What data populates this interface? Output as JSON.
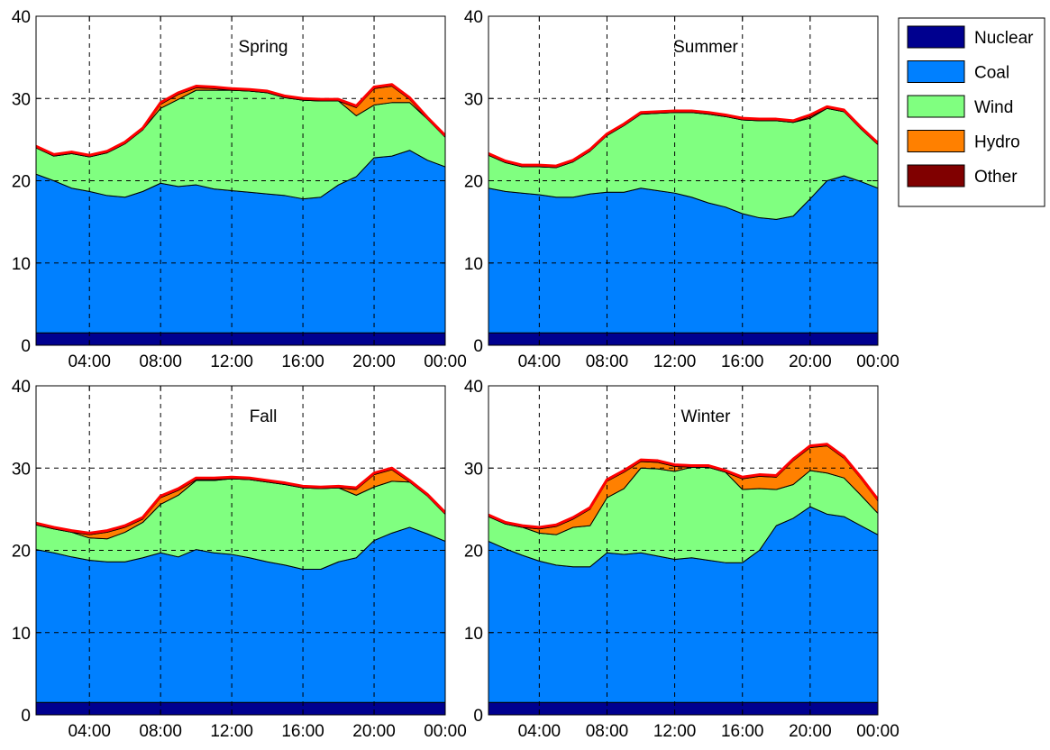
{
  "chart_data": {
    "type": "area",
    "stacked": true,
    "hours": [
      1,
      2,
      3,
      4,
      5,
      6,
      7,
      8,
      9,
      10,
      11,
      12,
      13,
      14,
      15,
      16,
      17,
      18,
      19,
      20,
      21,
      22,
      23,
      24
    ],
    "xticks": [
      4,
      8,
      12,
      16,
      20,
      24
    ],
    "xtick_labels": [
      "04:00",
      "08:00",
      "12:00",
      "16:00",
      "20:00",
      "00:00"
    ],
    "ylim": [
      0,
      40
    ],
    "yticks": [
      0,
      10,
      20,
      30,
      40
    ],
    "ytick_labels": [
      "0",
      "10",
      "20",
      "30",
      "40"
    ],
    "grid": true,
    "grid_style": "dashed",
    "total_line_color": "#ff0000",
    "legend": {
      "placement": "outside-right",
      "entries": [
        {
          "name": "Nuclear",
          "color": "#00008f"
        },
        {
          "name": "Coal",
          "color": "#0080ff"
        },
        {
          "name": "Wind",
          "color": "#80ff80"
        },
        {
          "name": "Hydro",
          "color": "#ff8000"
        },
        {
          "name": "Other",
          "color": "#800000"
        }
      ]
    },
    "panels": [
      {
        "title": "Spring",
        "series": [
          {
            "name": "Nuclear",
            "values": [
              1.5,
              1.5,
              1.5,
              1.5,
              1.5,
              1.5,
              1.5,
              1.5,
              1.5,
              1.5,
              1.5,
              1.5,
              1.5,
              1.5,
              1.5,
              1.5,
              1.5,
              1.5,
              1.5,
              1.5,
              1.5,
              1.5,
              1.5,
              1.5
            ]
          },
          {
            "name": "Coal",
            "values": [
              19.3,
              18.5,
              17.6,
              17.2,
              16.7,
              16.5,
              17.2,
              18.2,
              17.8,
              18.0,
              17.5,
              17.3,
              17.1,
              16.9,
              16.7,
              16.3,
              16.5,
              18.0,
              19.0,
              21.3,
              21.5,
              22.2,
              21.0,
              20.2
            ]
          },
          {
            "name": "Wind",
            "values": [
              3.2,
              3.0,
              4.2,
              4.2,
              5.2,
              6.5,
              7.5,
              9.1,
              10.6,
              11.5,
              12.0,
              12.2,
              12.3,
              12.3,
              11.9,
              12.0,
              11.7,
              10.2,
              7.4,
              6.4,
              6.5,
              5.8,
              5.0,
              3.6
            ]
          },
          {
            "name": "Hydro",
            "values": [
              0,
              0,
              0,
              0,
              0,
              0,
              0,
              0.5,
              0.6,
              0.3,
              0.2,
              0,
              0,
              0,
              0,
              0,
              0,
              0,
              1.0,
              2.0,
              2.0,
              0.4,
              0,
              0
            ]
          },
          {
            "name": "Other",
            "values": [
              0.2,
              0.2,
              0.2,
              0.2,
              0.2,
              0.2,
              0.2,
              0.2,
              0.2,
              0.2,
              0.2,
              0.2,
              0.2,
              0.2,
              0.2,
              0.2,
              0.2,
              0.2,
              0.2,
              0.2,
              0.2,
              0.2,
              0.2,
              0.2
            ]
          }
        ]
      },
      {
        "title": "Summer",
        "series": [
          {
            "name": "Nuclear",
            "values": [
              1.5,
              1.5,
              1.5,
              1.5,
              1.5,
              1.5,
              1.5,
              1.5,
              1.5,
              1.5,
              1.5,
              1.5,
              1.5,
              1.5,
              1.5,
              1.5,
              1.5,
              1.5,
              1.5,
              1.5,
              1.5,
              1.5,
              1.5,
              1.5
            ]
          },
          {
            "name": "Coal",
            "values": [
              17.6,
              17.2,
              17.0,
              16.8,
              16.5,
              16.5,
              16.9,
              17.1,
              17.1,
              17.6,
              17.3,
              17.0,
              16.5,
              15.8,
              15.3,
              14.5,
              14.0,
              13.8,
              14.2,
              16.3,
              18.5,
              19.1,
              18.4,
              17.6
            ]
          },
          {
            "name": "Wind",
            "values": [
              4.0,
              3.5,
              3.2,
              3.4,
              3.6,
              4.3,
              5.2,
              6.9,
              8.1,
              9.0,
              9.4,
              9.8,
              10.3,
              10.8,
              11.0,
              11.4,
              11.8,
              12.0,
              11.4,
              9.8,
              8.8,
              7.8,
              6.4,
              5.3
            ]
          },
          {
            "name": "Hydro",
            "values": [
              0,
              0,
              0,
              0,
              0,
              0,
              0,
              0,
              0,
              0,
              0,
              0,
              0,
              0,
              0,
              0,
              0,
              0,
              0,
              0.2,
              0,
              0,
              0,
              0
            ]
          },
          {
            "name": "Other",
            "values": [
              0.2,
              0.2,
              0.2,
              0.2,
              0.2,
              0.2,
              0.2,
              0.2,
              0.2,
              0.2,
              0.2,
              0.2,
              0.2,
              0.2,
              0.2,
              0.2,
              0.2,
              0.2,
              0.2,
              0.2,
              0.2,
              0.2,
              0.2,
              0.2
            ]
          }
        ]
      },
      {
        "title": "Fall",
        "series": [
          {
            "name": "Nuclear",
            "values": [
              1.5,
              1.5,
              1.5,
              1.5,
              1.5,
              1.5,
              1.5,
              1.5,
              1.5,
              1.5,
              1.5,
              1.5,
              1.5,
              1.5,
              1.5,
              1.5,
              1.5,
              1.5,
              1.5,
              1.5,
              1.5,
              1.5,
              1.5,
              1.5
            ]
          },
          {
            "name": "Coal",
            "values": [
              18.6,
              18.2,
              17.7,
              17.3,
              17.1,
              17.1,
              17.6,
              18.2,
              17.7,
              18.6,
              18.2,
              18.0,
              17.6,
              17.1,
              16.7,
              16.2,
              16.2,
              17.1,
              17.6,
              19.7,
              20.6,
              21.3,
              20.5,
              19.6
            ]
          },
          {
            "name": "Wind",
            "values": [
              3.0,
              2.9,
              3.0,
              2.7,
              2.8,
              3.6,
              4.3,
              5.9,
              7.5,
              8.4,
              8.8,
              9.2,
              9.5,
              9.7,
              9.8,
              9.9,
              9.8,
              9.0,
              7.6,
              6.5,
              6.3,
              5.5,
              4.6,
              3.3
            ]
          },
          {
            "name": "Hydro",
            "values": [
              0,
              0,
              0,
              0.4,
              0.8,
              0.6,
              0.4,
              0.8,
              0.6,
              0.1,
              0.1,
              0,
              0,
              0,
              0,
              0,
              0,
              0,
              0.7,
              1.5,
              1.4,
              0,
              0,
              0
            ]
          },
          {
            "name": "Other",
            "values": [
              0.2,
              0.2,
              0.2,
              0.2,
              0.2,
              0.2,
              0.2,
              0.2,
              0.2,
              0.2,
              0.2,
              0.2,
              0.2,
              0.2,
              0.2,
              0.2,
              0.2,
              0.2,
              0.2,
              0.2,
              0.2,
              0.2,
              0.2,
              0.2
            ]
          }
        ]
      },
      {
        "title": "Winter",
        "series": [
          {
            "name": "Nuclear",
            "values": [
              1.5,
              1.5,
              1.5,
              1.5,
              1.5,
              1.5,
              1.5,
              1.5,
              1.5,
              1.5,
              1.5,
              1.5,
              1.5,
              1.5,
              1.5,
              1.5,
              1.5,
              1.5,
              1.5,
              1.5,
              1.5,
              1.5,
              1.5,
              1.5
            ]
          },
          {
            "name": "Coal",
            "values": [
              19.6,
              18.7,
              17.9,
              17.2,
              16.7,
              16.5,
              16.5,
              18.2,
              18.0,
              18.2,
              17.8,
              17.4,
              17.6,
              17.3,
              17.0,
              17.0,
              18.5,
              21.5,
              22.4,
              23.8,
              22.9,
              22.6,
              21.5,
              20.4
            ]
          },
          {
            "name": "Wind",
            "values": [
              3.0,
              3.0,
              3.4,
              3.4,
              3.7,
              4.8,
              5.0,
              6.7,
              8.0,
              10.3,
              10.6,
              10.7,
              11.0,
              11.3,
              11.0,
              8.9,
              7.5,
              4.4,
              4.1,
              4.4,
              5.0,
              4.7,
              3.7,
              2.6
            ]
          },
          {
            "name": "Hydro",
            "values": [
              0,
              0,
              0,
              0.5,
              1.0,
              1.0,
              2.0,
              2.0,
              2.0,
              0.8,
              0.8,
              0.6,
              0,
              0,
              0,
              1.3,
              1.5,
              1.5,
              2.9,
              2.8,
              3.3,
              2.4,
              2.0,
              1.5
            ]
          },
          {
            "name": "Other",
            "values": [
              0.2,
              0.2,
              0.2,
              0.2,
              0.2,
              0.2,
              0.2,
              0.2,
              0.2,
              0.2,
              0.2,
              0.2,
              0.2,
              0.2,
              0.2,
              0.2,
              0.2,
              0.2,
              0.2,
              0.2,
              0.2,
              0.2,
              0.2,
              0.2
            ]
          }
        ]
      }
    ]
  }
}
